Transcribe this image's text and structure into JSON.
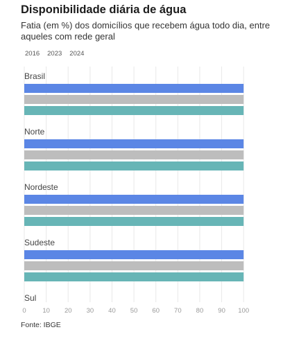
{
  "title": "Disponibilidade diária de água",
  "subtitle": "Fatia (em %) dos domicílios que recebem água todo dia, entre aqueles com rede geral",
  "source": "Fonte: IBGE",
  "colors": {
    "series_2016": "#5b86e5",
    "series_2023": "#bdbdbd",
    "series_2024": "#67b5b6",
    "grid": "#e8e8e8",
    "tick_text": "#999999",
    "category_text": "#444444"
  },
  "chart_data": {
    "type": "bar",
    "orientation": "horizontal",
    "categories": [
      "Brasil",
      "Norte",
      "Nordeste",
      "Sudeste",
      "Sul"
    ],
    "series": [
      {
        "name": "2016",
        "values": [
          100,
          100,
          100,
          100,
          null
        ]
      },
      {
        "name": "2023",
        "values": [
          100,
          100,
          100,
          100,
          null
        ]
      },
      {
        "name": "2024",
        "values": [
          100,
          100,
          100,
          100,
          null
        ]
      }
    ],
    "xlim": [
      0,
      105
    ],
    "xticks": [
      0,
      10,
      20,
      30,
      40,
      50,
      60,
      70,
      80,
      90,
      100
    ],
    "legend_position": "top-left",
    "grid": true
  }
}
